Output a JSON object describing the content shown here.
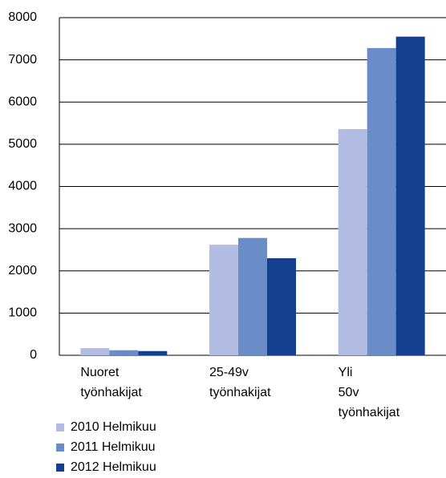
{
  "chart_data": {
    "type": "bar",
    "categories": [
      "Nuoret työnhakijat",
      "25-49v työnhakijat",
      "Yli 50v työnhakijat"
    ],
    "series": [
      {
        "name": "2010 Helmikuu",
        "color": "#b3bde3",
        "values": [
          170,
          2620,
          5360
        ]
      },
      {
        "name": "2011 Helmikuu",
        "color": "#6a8cc7",
        "values": [
          120,
          2780,
          7280
        ]
      },
      {
        "name": "2012 Helmikuu",
        "color": "#143f8e",
        "values": [
          100,
          2300,
          7550
        ]
      }
    ],
    "ylim": [
      0,
      8000
    ],
    "yticks": [
      0,
      1000,
      2000,
      3000,
      4000,
      5000,
      6000,
      7000,
      8000
    ],
    "grid": true
  }
}
